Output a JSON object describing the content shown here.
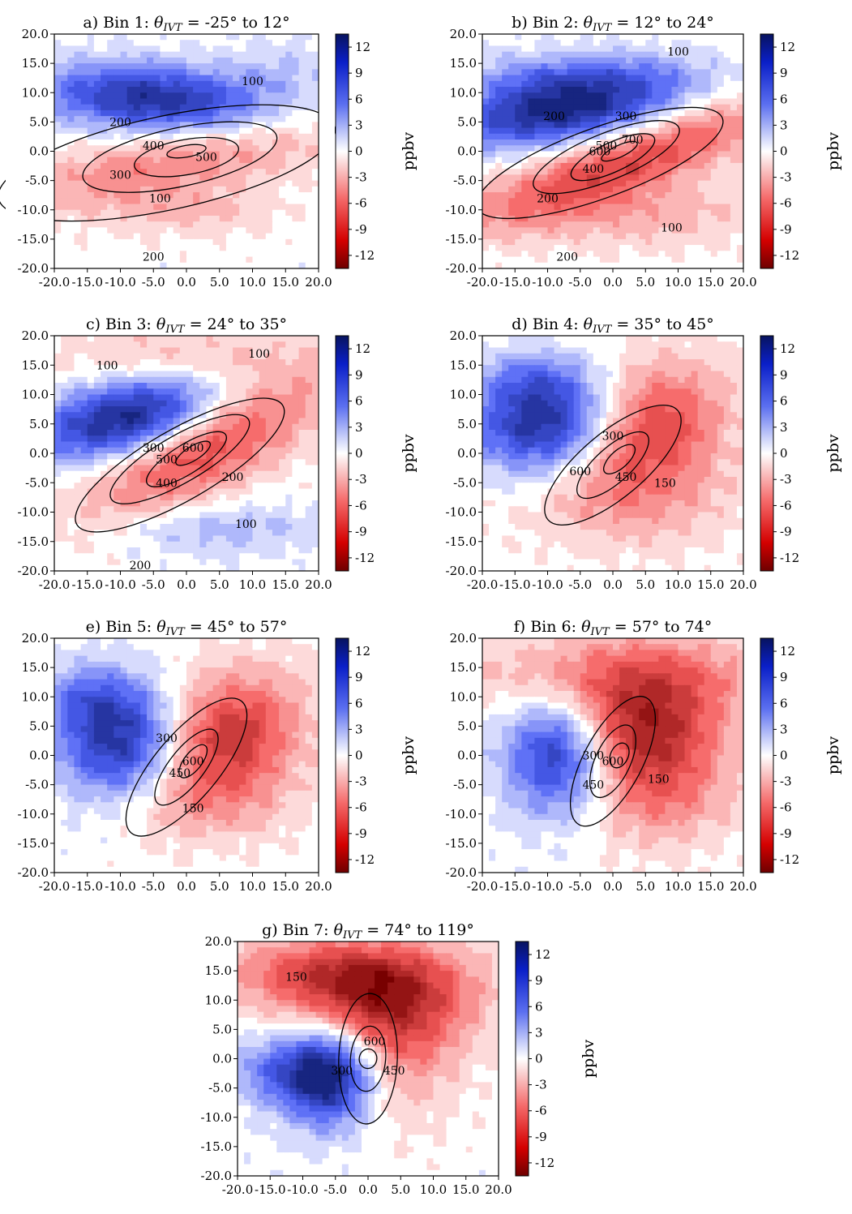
{
  "figure": {
    "colorbar_label": "ppbv",
    "colorbar_ticks": [
      "12",
      "9",
      "6",
      "3",
      "0",
      "-3",
      "-6",
      "-9",
      "-12"
    ],
    "colorbar_range": [
      -13.5,
      13.5
    ],
    "axis_ticks": [
      "20.0",
      "15.0",
      "10.0",
      "5.0",
      "0.0",
      "-5.0",
      "-10.0",
      "-15.0",
      "-20.0"
    ],
    "x_ticks": [
      "-20.0",
      "-15.0",
      "-10.0",
      "-5.0",
      "0.0",
      "5.0",
      "10.0",
      "15.0",
      "20.0"
    ],
    "colors": {
      "positive": "#0a1a8c",
      "negative": "#7a0000",
      "neutral": "#ffffff"
    }
  },
  "chart_data": [
    {
      "type": "heatmap",
      "panel": "a",
      "title_prefix": "a) Bin 1:  ",
      "theta": "θ",
      "theta_sub": "IVT",
      "title_suffix": " = -25° to 12°",
      "xlim": [
        -20,
        20
      ],
      "ylim": [
        -20,
        20
      ],
      "field_blobs": [
        {
          "x": -5,
          "y": 9,
          "rx": 12,
          "ry": 4,
          "rot": -5,
          "amp": 11
        },
        {
          "x": 15,
          "y": 14,
          "rx": 6,
          "ry": 4,
          "rot": 0,
          "amp": 2
        },
        {
          "x": -2,
          "y": -2,
          "rx": 18,
          "ry": 4,
          "rot": 12,
          "amp": -5
        },
        {
          "x": 0,
          "y": -10,
          "rx": 10,
          "ry": 3,
          "rot": 0,
          "amp": -2.5
        }
      ],
      "contour_labels": [
        "100",
        "200",
        "400",
        "500",
        "300",
        "100",
        "200"
      ]
    },
    {
      "type": "heatmap",
      "panel": "b",
      "title_prefix": "b) Bin 2:  ",
      "theta": "θ",
      "theta_sub": "IVT",
      "title_suffix": " = 12° to 24°",
      "xlim": [
        -20,
        20
      ],
      "ylim": [
        -20,
        20
      ],
      "field_blobs": [
        {
          "x": -8,
          "y": 7,
          "rx": 12,
          "ry": 4,
          "rot": 8,
          "amp": 12
        },
        {
          "x": -5,
          "y": 13,
          "rx": 14,
          "ry": 3,
          "rot": 0,
          "amp": 4
        },
        {
          "x": 2,
          "y": -2,
          "rx": 18,
          "ry": 4,
          "rot": 22,
          "amp": -8
        },
        {
          "x": 5,
          "y": -11,
          "rx": 14,
          "ry": 4,
          "rot": 0,
          "amp": -3
        }
      ],
      "contour_labels": [
        "100",
        "200",
        "300",
        "500",
        "700",
        "600",
        "400",
        "200",
        "100",
        "200"
      ]
    },
    {
      "type": "heatmap",
      "panel": "c",
      "title_prefix": "c) Bin 3:  ",
      "theta": "θ",
      "theta_sub": "IVT",
      "title_suffix": " = 24° to 35°",
      "xlim": [
        -20,
        20
      ],
      "ylim": [
        -20,
        20
      ],
      "field_blobs": [
        {
          "x": -9,
          "y": 6,
          "rx": 10,
          "ry": 4.5,
          "rot": 15,
          "amp": 12
        },
        {
          "x": 3,
          "y": 1,
          "rx": 14,
          "ry": 5,
          "rot": 30,
          "amp": -8
        },
        {
          "x": 0,
          "y": 16,
          "rx": 14,
          "ry": 4,
          "rot": 0,
          "amp": -3
        },
        {
          "x": 5,
          "y": -13,
          "rx": 12,
          "ry": 3,
          "rot": 0,
          "amp": 3
        }
      ],
      "contour_labels": [
        "100",
        "100",
        "300",
        "500",
        "600",
        "400",
        "200",
        "100",
        "200"
      ]
    },
    {
      "type": "heatmap",
      "panel": "d",
      "title_prefix": "d) Bin 4:  ",
      "theta": "θ",
      "theta_sub": "IVT",
      "title_suffix": " = 35° to 45°",
      "xlim": [
        -20,
        20
      ],
      "ylim": [
        -20,
        20
      ],
      "field_blobs": [
        {
          "x": -10,
          "y": 5,
          "rx": 8,
          "ry": 6,
          "rot": 0,
          "amp": 12
        },
        {
          "x": -12,
          "y": 13,
          "rx": 6,
          "ry": 3,
          "rot": 0,
          "amp": 3
        },
        {
          "x": 5,
          "y": 4,
          "rx": 9,
          "ry": 7,
          "rot": 35,
          "amp": -9
        },
        {
          "x": 3,
          "y": -8,
          "rx": 12,
          "ry": 6,
          "rot": 0,
          "amp": -3
        }
      ],
      "contour_labels": [
        "300",
        "600",
        "450",
        "150"
      ]
    },
    {
      "type": "heatmap",
      "panel": "e",
      "title_prefix": "e) Bin 5:  ",
      "theta": "θ",
      "theta_sub": "IVT",
      "title_suffix": " = 45° to 57°",
      "xlim": [
        -20,
        20
      ],
      "ylim": [
        -20,
        20
      ],
      "field_blobs": [
        {
          "x": -9,
          "y": 2,
          "rx": 7,
          "ry": 7,
          "rot": 0,
          "amp": 12
        },
        {
          "x": -15,
          "y": 10,
          "rx": 5,
          "ry": 4,
          "rot": 0,
          "amp": 4
        },
        {
          "x": 5,
          "y": 3,
          "rx": 9,
          "ry": 7,
          "rot": 30,
          "amp": -10
        },
        {
          "x": 2,
          "y": -8,
          "rx": 10,
          "ry": 5,
          "rot": 0,
          "amp": -3
        }
      ],
      "contour_labels": [
        "300",
        "600",
        "450",
        "150"
      ]
    },
    {
      "type": "heatmap",
      "panel": "f",
      "title_prefix": "f) Bin 6: ",
      "theta": "θ",
      "theta_sub": "IVT",
      "title_suffix": " = 57° to 74°",
      "xlim": [
        -20,
        20
      ],
      "ylim": [
        -20,
        20
      ],
      "field_blobs": [
        {
          "x": -8,
          "y": 0,
          "rx": 6,
          "ry": 7,
          "rot": 0,
          "amp": 12
        },
        {
          "x": 4,
          "y": 4,
          "rx": 9,
          "ry": 8,
          "rot": 20,
          "amp": -11
        },
        {
          "x": 0,
          "y": 14,
          "rx": 18,
          "ry": 5,
          "rot": 0,
          "amp": -4
        },
        {
          "x": 8,
          "y": -8,
          "rx": 8,
          "ry": 6,
          "rot": 0,
          "amp": -3
        }
      ],
      "contour_labels": [
        "300",
        "600",
        "450",
        "150"
      ]
    },
    {
      "type": "heatmap",
      "panel": "g",
      "title_prefix": "g) Bin 7: ",
      "theta": "θ",
      "theta_sub": "IVT",
      "title_suffix": " = 74° to 119°",
      "xlim": [
        -20,
        20
      ],
      "ylim": [
        -20,
        20
      ],
      "field_blobs": [
        {
          "x": -6,
          "y": -3,
          "rx": 5,
          "ry": 6,
          "rot": 0,
          "amp": 12
        },
        {
          "x": -14,
          "y": -2,
          "rx": 6,
          "ry": 4,
          "rot": 0,
          "amp": 5
        },
        {
          "x": 2,
          "y": 10,
          "rx": 10,
          "ry": 6,
          "rot": 0,
          "amp": -9
        },
        {
          "x": -6,
          "y": 15,
          "rx": 12,
          "ry": 4,
          "rot": 0,
          "amp": -6
        },
        {
          "x": 5,
          "y": 0,
          "rx": 6,
          "ry": 8,
          "rot": 0,
          "amp": -4
        }
      ],
      "contour_labels": [
        "150",
        "600",
        "450",
        "300"
      ]
    }
  ]
}
